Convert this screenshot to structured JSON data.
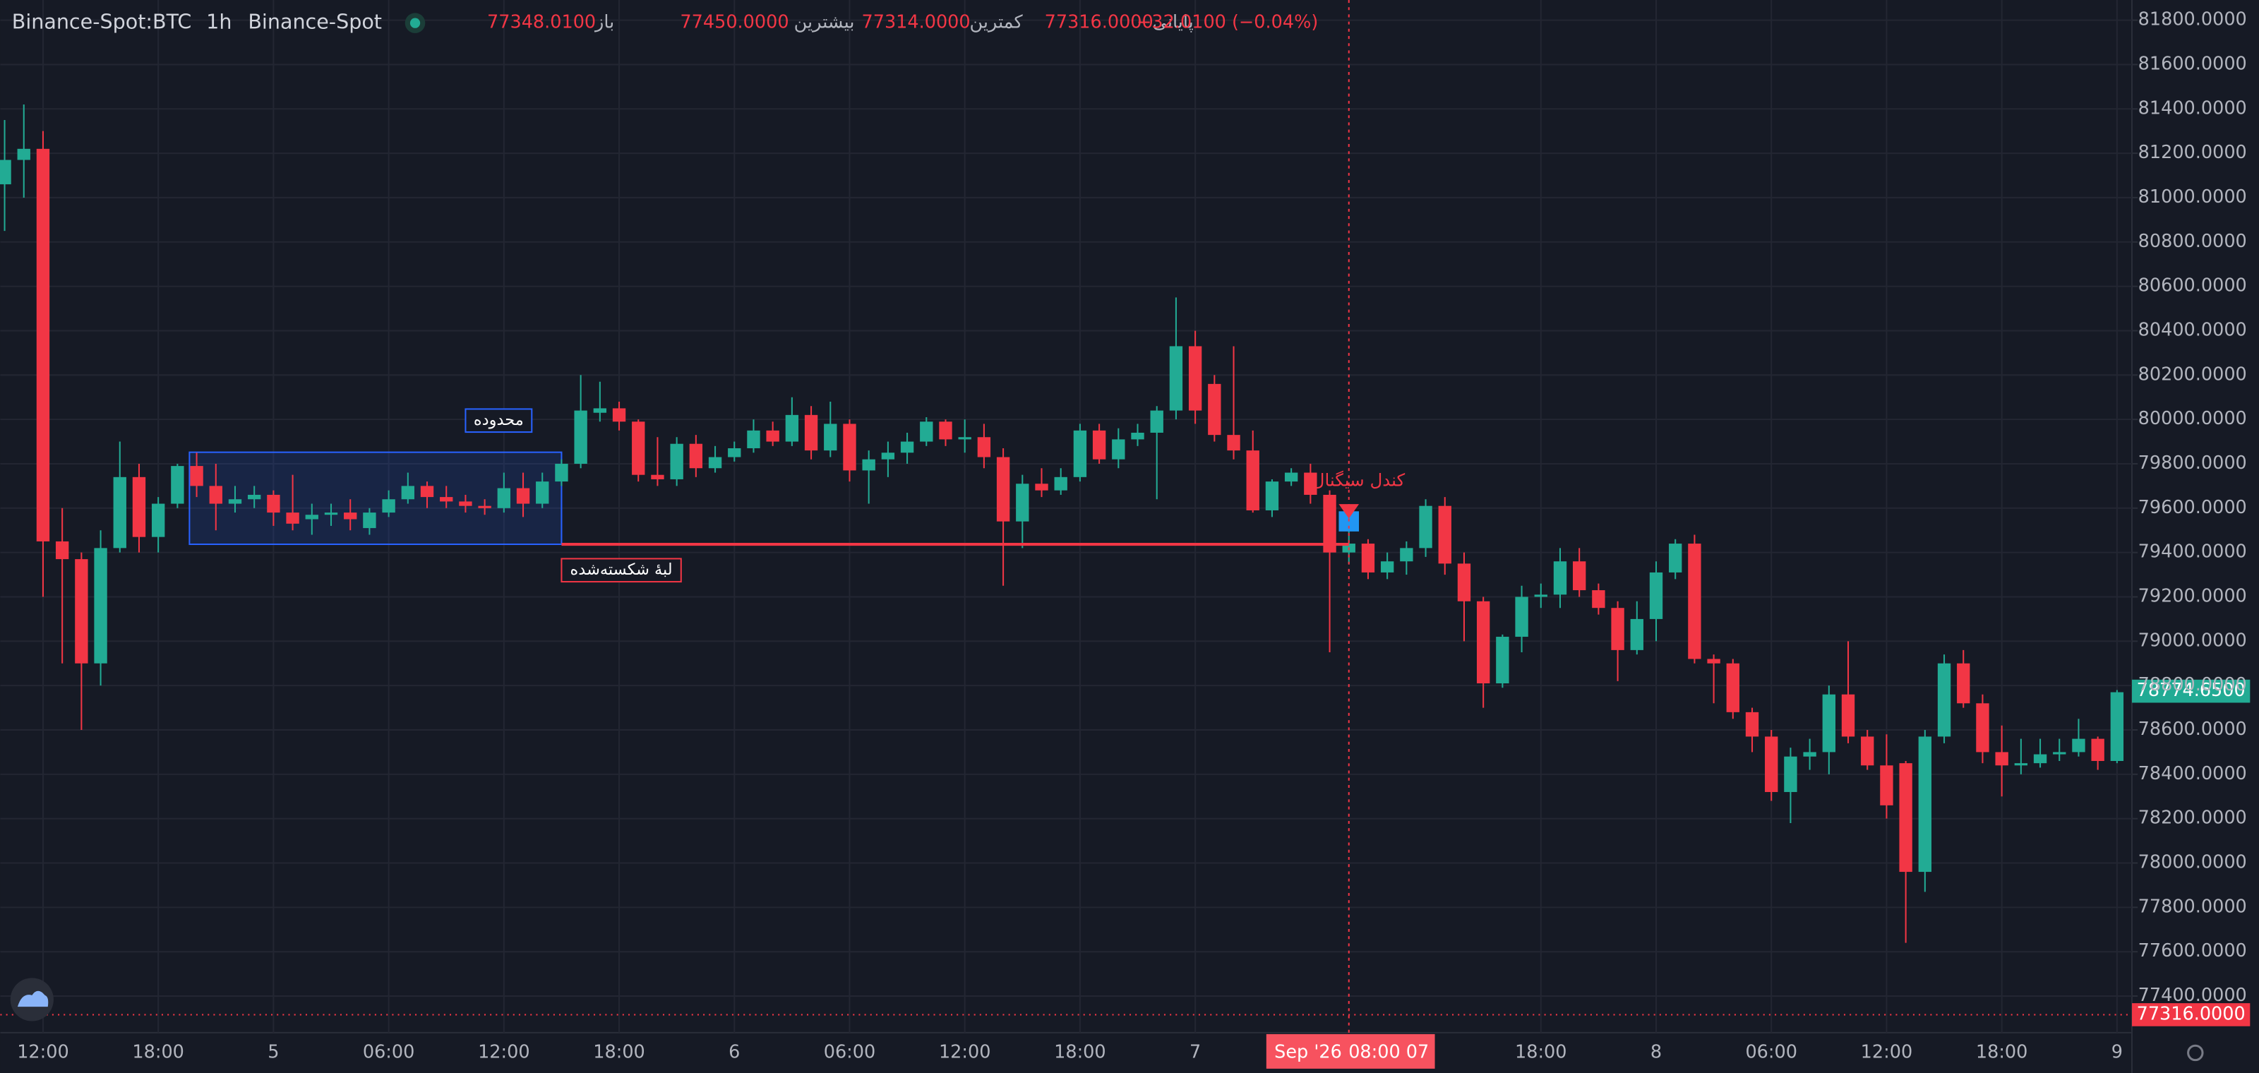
{
  "chart_data": {
    "type": "candlestick",
    "title": "Binance-Spot:BTC",
    "interval": "1h",
    "exchange": "Binance-Spot",
    "ohlc_legend": [
      {
        "name": "باز",
        "value": 77348.01,
        "label": "77348.0100"
      },
      {
        "name": "بیشترین",
        "value": 77450,
        "label": "77450.0000"
      },
      {
        "name": "کمترین",
        "value": 77314,
        "label": "77314.0000"
      },
      {
        "name": "پایانی",
        "value": 77316,
        "label": "77316.0000"
      }
    ],
    "change": {
      "value": -32.01,
      "label": "−32.0100 (−0.04%)"
    },
    "up_color": "#22ab94",
    "down_color": "#f23645",
    "categories": [
      null,
      null,
      "12:00",
      null,
      null,
      null,
      null,
      null,
      "18:00",
      null,
      null,
      null,
      null,
      null,
      "5",
      null,
      null,
      null,
      null,
      null,
      "06:00",
      null,
      null,
      null,
      null,
      null,
      "12:00",
      null,
      null,
      null,
      null,
      null,
      "18:00",
      null,
      null,
      null,
      null,
      null,
      "6",
      null,
      null,
      null,
      null,
      null,
      "06:00",
      null,
      null,
      null,
      null,
      null,
      "12:00",
      null,
      null,
      null,
      null,
      null,
      "18:00",
      null,
      null,
      null,
      null,
      null,
      "7",
      null,
      null,
      null,
      null,
      null,
      null,
      null,
      null,
      null,
      null,
      null,
      null,
      null,
      null,
      null,
      null,
      null,
      "18:00",
      null,
      null,
      null,
      null,
      null,
      "8",
      null,
      null,
      null,
      null,
      null,
      "06:00",
      null,
      null,
      null,
      null,
      null,
      "12:00",
      null,
      null,
      null,
      null,
      null,
      "18:00",
      null,
      null,
      null,
      null,
      null,
      "9"
    ],
    "open": [
      81060,
      81170,
      81220,
      79450,
      79370,
      78900,
      79420,
      79740,
      79470,
      79620,
      79790,
      79700,
      79620,
      79640,
      79660,
      79580,
      79550,
      79570,
      79580,
      79510,
      79580,
      79640,
      79700,
      79650,
      79630,
      79610,
      79600,
      79690,
      79620,
      79720,
      79800,
      80030,
      80050,
      79990,
      79750,
      79730,
      79890,
      79780,
      79830,
      79870,
      79950,
      79900,
      80020,
      79860,
      79980,
      79770,
      79820,
      79850,
      79900,
      79990,
      79910,
      79920,
      79830,
      79540,
      79710,
      79680,
      79740,
      79950,
      79820,
      79910,
      79940,
      80040,
      80330,
      80160,
      79930,
      79860,
      79590,
      79720,
      79760,
      79660,
      79400,
      79440,
      79310,
      79360,
      79420,
      79610,
      79350,
      79180,
      78810,
      79020,
      79200,
      79210,
      79360,
      79230,
      79150,
      78960,
      79100,
      79310,
      79440,
      78920,
      78900,
      78680,
      78570,
      78320,
      78480,
      78500,
      78760,
      78570,
      78440,
      78450,
      77960,
      78570,
      78900,
      78720,
      78500,
      78440,
      78450,
      78490,
      78500,
      78560,
      78460
    ],
    "high": [
      81350,
      81420,
      81300,
      79600,
      79400,
      79500,
      79900,
      79800,
      79650,
      79800,
      79850,
      79800,
      79700,
      79700,
      79680,
      79750,
      79620,
      79620,
      79640,
      79600,
      79680,
      79760,
      79720,
      79700,
      79660,
      79640,
      79760,
      79760,
      79760,
      79820,
      80200,
      80170,
      80080,
      80000,
      79920,
      79920,
      79930,
      79880,
      79900,
      80000,
      79990,
      80100,
      80060,
      80080,
      80000,
      79860,
      79900,
      79940,
      80010,
      80000,
      80000,
      79980,
      79870,
      79750,
      79780,
      79780,
      79980,
      79980,
      79960,
      79980,
      80060,
      80550,
      80400,
      80200,
      80330,
      79950,
      79730,
      79780,
      79800,
      79680,
      79500,
      79460,
      79400,
      79450,
      79640,
      79650,
      79400,
      79200,
      79030,
      79250,
      79260,
      79420,
      79420,
      79260,
      79180,
      79180,
      79360,
      79460,
      79480,
      78940,
      78920,
      78700,
      78600,
      78520,
      78560,
      78800,
      79000,
      78600,
      78580,
      78460,
      78600,
      78940,
      78960,
      78760,
      78620,
      78560,
      78560,
      78560,
      78650,
      78570,
      78780
    ],
    "low": [
      80850,
      81000,
      79200,
      78900,
      78600,
      78800,
      79400,
      79400,
      79400,
      79600,
      79650,
      79500,
      79580,
      79600,
      79520,
      79500,
      79480,
      79520,
      79500,
      79480,
      79560,
      79620,
      79600,
      79600,
      79580,
      79570,
      79580,
      79560,
      79600,
      79700,
      79780,
      79990,
      79950,
      79720,
      79700,
      79700,
      79740,
      79760,
      79810,
      79850,
      79880,
      79880,
      79820,
      79830,
      79720,
      79620,
      79740,
      79800,
      79880,
      79880,
      79850,
      79780,
      79250,
      79420,
      79650,
      79660,
      79720,
      79800,
      79780,
      79880,
      79640,
      80000,
      79980,
      79900,
      79820,
      79580,
      79560,
      79700,
      79620,
      78950,
      79350,
      79280,
      79280,
      79300,
      79380,
      79300,
      79000,
      78700,
      78790,
      78950,
      79150,
      79150,
      79200,
      79120,
      78820,
      78940,
      79000,
      79280,
      78900,
      78720,
      78650,
      78500,
      78280,
      78180,
      78420,
      78400,
      78540,
      78420,
      78200,
      77640,
      77870,
      78540,
      78700,
      78450,
      78300,
      78400,
      78430,
      78460,
      78480,
      78420,
      78450
    ],
    "close": [
      81170,
      81220,
      79450,
      79370,
      78900,
      79420,
      79740,
      79470,
      79620,
      79790,
      79700,
      79620,
      79640,
      79660,
      79580,
      79530,
      79570,
      79580,
      79550,
      79580,
      79640,
      79700,
      79650,
      79630,
      79610,
      79600,
      79690,
      79620,
      79720,
      79800,
      80040,
      80050,
      79990,
      79750,
      79730,
      79890,
      79780,
      79830,
      79870,
      79950,
      79900,
      80020,
      79860,
      79980,
      79770,
      79820,
      79850,
      79900,
      79990,
      79910,
      79920,
      79830,
      79540,
      79710,
      79680,
      79740,
      79950,
      79820,
      79910,
      79940,
      80040,
      80330,
      80040,
      79930,
      79860,
      79590,
      79720,
      79760,
      79660,
      79400,
      79440,
      79310,
      79360,
      79420,
      79610,
      79350,
      79180,
      78810,
      79020,
      79200,
      79210,
      79360,
      79230,
      79150,
      78960,
      79100,
      79310,
      79440,
      78920,
      78900,
      78680,
      78570,
      78320,
      78480,
      78500,
      78760,
      78570,
      78440,
      78260,
      77960,
      78570,
      78900,
      78720,
      78500,
      78440,
      78450,
      78490,
      78500,
      78560,
      78460,
      78770
    ],
    "ylim": [
      77235,
      81891
    ],
    "yticks": [
      {
        "value": 77400,
        "label": "77400.0000"
      },
      {
        "value": 77600,
        "label": "77600.0000"
      },
      {
        "value": 77800,
        "label": "77800.0000"
      },
      {
        "value": 78000,
        "label": "78000.0000"
      },
      {
        "value": 78200,
        "label": "78200.0000"
      },
      {
        "value": 78400,
        "label": "78400.0000"
      },
      {
        "value": 78600,
        "label": "78600.0000"
      },
      {
        "value": 78800,
        "label": "78800.0000"
      },
      {
        "value": 79000,
        "label": "79000.0000"
      },
      {
        "value": 79200,
        "label": "79200.0000"
      },
      {
        "value": 79400,
        "label": "79400.0000"
      },
      {
        "value": 79600,
        "label": "79600.0000"
      },
      {
        "value": 79800,
        "label": "79800.0000"
      },
      {
        "value": 80000,
        "label": "80000.0000"
      },
      {
        "value": 80200,
        "label": "80200.0000"
      },
      {
        "value": 80400,
        "label": "80400.0000"
      },
      {
        "value": 80600,
        "label": "80600.0000"
      },
      {
        "value": 80800,
        "label": "80800.0000"
      },
      {
        "value": 81000,
        "label": "81000.0000"
      },
      {
        "value": 81200,
        "label": "81200.0000"
      },
      {
        "value": 81400,
        "label": "81400.0000"
      },
      {
        "value": 81600,
        "label": "81600.0000"
      },
      {
        "value": 81800,
        "label": "81800.0000"
      }
    ],
    "grid": true,
    "price_labels": [
      {
        "value": 78774.65,
        "label": "78774.6500",
        "color": "#22ab94"
      },
      {
        "value": 77316,
        "label": "77316.0000",
        "color": "#f23645"
      }
    ],
    "annotations": {
      "range_box": {
        "label": "محدوده",
        "low": 79437,
        "high": 79852
      },
      "broken_edge": {
        "label": "لبهٔ شکسته‌شده",
        "value": 79437
      },
      "signal": {
        "label": "کندل سیگنال"
      }
    },
    "crosshair": {
      "date": "Sep '26",
      "time": "08:00 07"
    }
  }
}
